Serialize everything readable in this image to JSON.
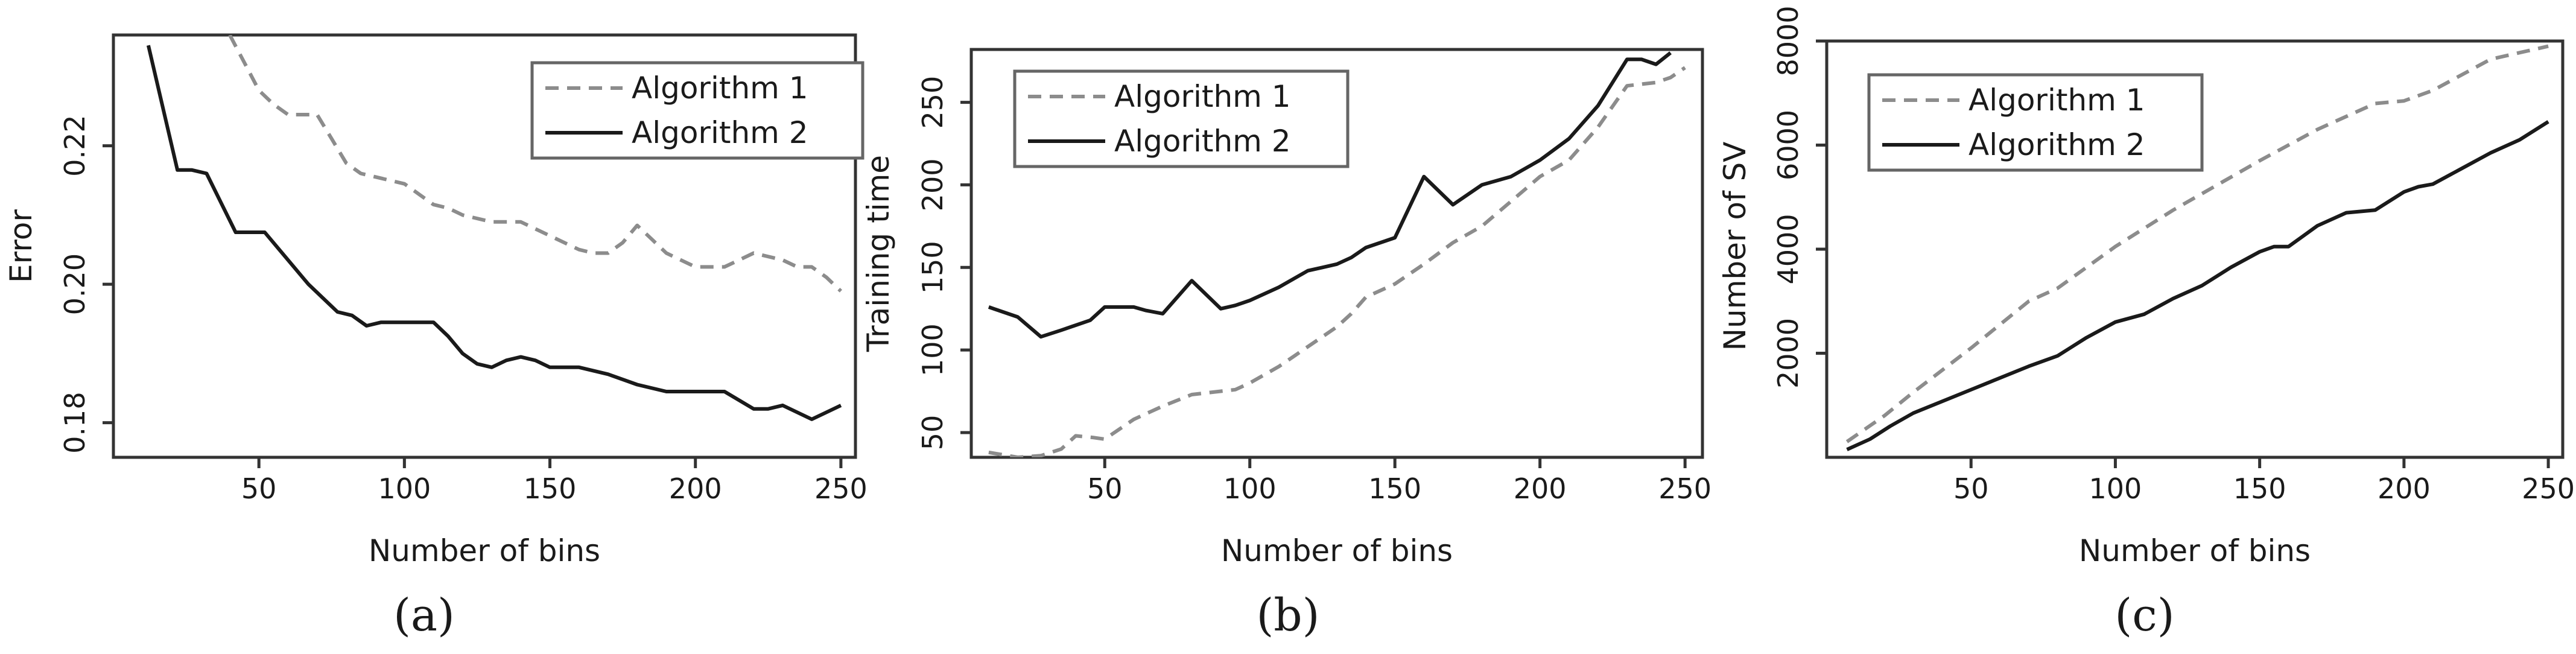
{
  "chart_data": [
    {
      "type": "line",
      "panel_label": "(a)",
      "xlabel": "Number of bins",
      "ylabel": "Error",
      "xlim": [
        0,
        255
      ],
      "ylim": [
        0.175,
        0.236
      ],
      "xticks": [
        50,
        100,
        150,
        200,
        250
      ],
      "yticks": [
        0.18,
        0.2,
        0.22
      ],
      "ytick_labels": [
        "0.18",
        "0.20",
        "0.22"
      ],
      "legend_position": "top-right",
      "series": [
        {
          "name": "Algorithm 1",
          "style": "dashed",
          "color": "#8c8c8c",
          "x": [
            40,
            45,
            50,
            55,
            60,
            70,
            75,
            80,
            85,
            90,
            100,
            105,
            110,
            115,
            120,
            130,
            140,
            145,
            150,
            160,
            165,
            170,
            175,
            180,
            185,
            190,
            200,
            205,
            210,
            215,
            220,
            230,
            235,
            240,
            245,
            250
          ],
          "y": [
            0.236,
            0.232,
            0.228,
            0.226,
            0.2245,
            0.2245,
            0.221,
            0.2175,
            0.216,
            0.2155,
            0.2145,
            0.213,
            0.2115,
            0.211,
            0.21,
            0.209,
            0.209,
            0.208,
            0.207,
            0.205,
            0.2045,
            0.2045,
            0.206,
            0.2085,
            0.2065,
            0.2045,
            0.2025,
            0.2025,
            0.2025,
            0.2035,
            0.2045,
            0.2035,
            0.2025,
            0.2025,
            0.201,
            0.199
          ]
        },
        {
          "name": "Algorithm 2",
          "style": "solid",
          "color": "#1a1a1a",
          "x": [
            12,
            22,
            27,
            32,
            42,
            47,
            52,
            57,
            62,
            67,
            72,
            77,
            82,
            87,
            92,
            100,
            105,
            110,
            115,
            120,
            125,
            130,
            135,
            140,
            145,
            150,
            160,
            165,
            170,
            180,
            190,
            200,
            210,
            220,
            225,
            230,
            235,
            240,
            245,
            250
          ],
          "y": [
            0.2345,
            0.2165,
            0.2165,
            0.216,
            0.2075,
            0.2075,
            0.2075,
            0.205,
            0.2025,
            0.2,
            0.198,
            0.196,
            0.1955,
            0.194,
            0.1945,
            0.1945,
            0.1945,
            0.1945,
            0.1925,
            0.19,
            0.1885,
            0.188,
            0.189,
            0.1895,
            0.189,
            0.188,
            0.188,
            0.1875,
            0.187,
            0.1855,
            0.1845,
            0.1845,
            0.1845,
            0.182,
            0.182,
            0.1825,
            0.1815,
            0.1805,
            0.1815,
            0.1825
          ]
        }
      ]
    },
    {
      "type": "line",
      "panel_label": "(b)",
      "xlabel": "Number of bins",
      "ylabel": "Training time",
      "xlim": [
        4,
        256
      ],
      "ylim": [
        35,
        282
      ],
      "xticks": [
        50,
        100,
        150,
        200,
        250
      ],
      "yticks": [
        50,
        100,
        150,
        200,
        250
      ],
      "ytick_labels": [
        "50",
        "100",
        "150",
        "200",
        "250"
      ],
      "legend_position": "top-left",
      "series": [
        {
          "name": "Algorithm 1",
          "style": "dashed",
          "color": "#8c8c8c",
          "x": [
            10,
            20,
            28,
            35,
            40,
            46,
            50,
            55,
            60,
            65,
            70,
            80,
            90,
            95,
            100,
            110,
            115,
            120,
            125,
            130,
            135,
            140,
            150,
            160,
            170,
            180,
            190,
            200,
            210,
            220,
            230,
            240,
            245,
            250
          ],
          "y": [
            38,
            35,
            36,
            40,
            48,
            47,
            46,
            52,
            58,
            62,
            66,
            73,
            75,
            76,
            80,
            90,
            96,
            102,
            108,
            114,
            122,
            132,
            140,
            152,
            165,
            175,
            190,
            205,
            215,
            235,
            260,
            262,
            265,
            271
          ]
        },
        {
          "name": "Algorithm 2",
          "style": "solid",
          "color": "#1a1a1a",
          "x": [
            10,
            20,
            28,
            35,
            45,
            50,
            60,
            64,
            70,
            75,
            80,
            90,
            95,
            100,
            110,
            120,
            125,
            130,
            135,
            140,
            150,
            160,
            170,
            180,
            190,
            200,
            210,
            220,
            230,
            235,
            240,
            245
          ],
          "y": [
            126,
            120,
            108,
            112,
            118,
            126,
            126,
            124,
            122,
            132,
            142,
            125,
            127,
            130,
            138,
            148,
            150,
            152,
            156,
            162,
            168,
            205,
            188,
            200,
            205,
            215,
            228,
            248,
            276,
            276,
            273,
            280
          ]
        }
      ]
    },
    {
      "type": "line",
      "panel_label": "(c)",
      "xlabel": "Number of bins",
      "ylabel": "Number of SV",
      "xlim": [
        0,
        255
      ],
      "ylim": [
        0,
        8000
      ],
      "xticks": [
        50,
        100,
        150,
        200,
        250
      ],
      "yticks": [
        2000,
        4000,
        6000,
        8000
      ],
      "ytick_labels": [
        "2000",
        "4000",
        "6000",
        "8000"
      ],
      "legend_position": "top-left",
      "series": [
        {
          "name": "Algorithm 1",
          "style": "dashed",
          "color": "#8c8c8c",
          "x": [
            7,
            20,
            30,
            50,
            70,
            80,
            100,
            120,
            150,
            170,
            190,
            200,
            210,
            230,
            250
          ],
          "y": [
            300,
            800,
            1250,
            2100,
            3000,
            3250,
            4050,
            4750,
            5700,
            6300,
            6800,
            6850,
            7050,
            7650,
            7900
          ]
        },
        {
          "name": "Algorithm 2",
          "style": "solid",
          "color": "#1a1a1a",
          "x": [
            7,
            15,
            22,
            30,
            50,
            70,
            80,
            90,
            100,
            110,
            120,
            130,
            140,
            150,
            155,
            160,
            170,
            180,
            190,
            200,
            205,
            210,
            220,
            230,
            240,
            250
          ],
          "y": [
            150,
            350,
            600,
            850,
            1300,
            1750,
            1950,
            2300,
            2600,
            2750,
            3050,
            3300,
            3650,
            3950,
            4050,
            4050,
            4450,
            4700,
            4750,
            5100,
            5200,
            5250,
            5550,
            5850,
            6100,
            6450
          ]
        }
      ]
    }
  ]
}
